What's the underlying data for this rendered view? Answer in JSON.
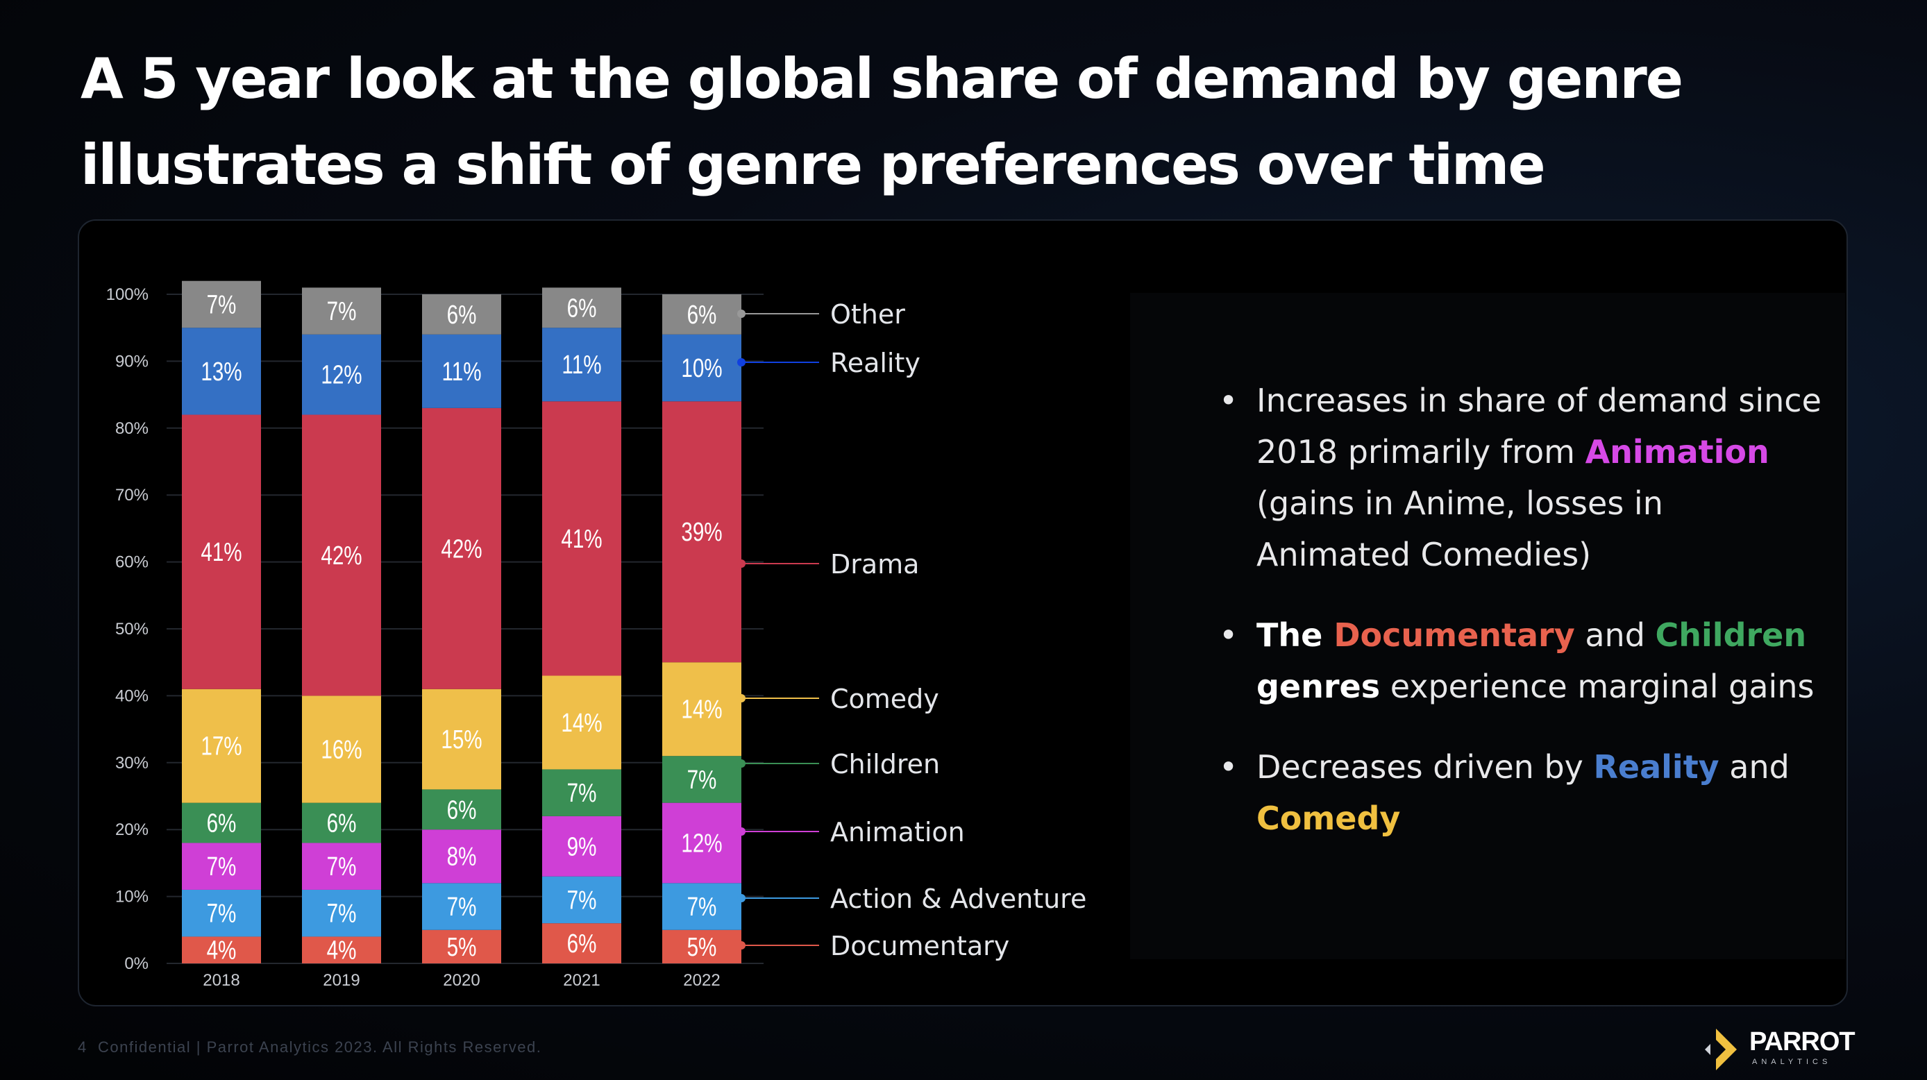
{
  "title": {
    "line1": "A 5 year look at the global share of demand by genre",
    "line2": "illustrates a shift of genre preferences over time"
  },
  "bullets": {
    "b1": {
      "part1": "Increases in share of demand since 2018 primarily from ",
      "highlight": "Animation",
      "part2": " (gains in Anime, losses in Animated Comedies)"
    },
    "b2": {
      "lead": "The ",
      "doc": "Documentary",
      "and": " and ",
      "children": "Children",
      "genres": " genres",
      "rest": " experience marginal gains"
    },
    "b3": {
      "part1": "Decreases driven by ",
      "reality": "Reality",
      "and": " and ",
      "comedy": "Comedy"
    }
  },
  "footer": {
    "page_number": "4",
    "text": "Confidential  |  Parrot Analytics 2023. All Rights Reserved."
  },
  "logo": {
    "word": "PARROT",
    "sub": "ANALYTICS"
  },
  "chart_data": {
    "type": "bar",
    "stacked": true,
    "categories": [
      "2018",
      "2019",
      "2020",
      "2021",
      "2022"
    ],
    "y_ticks": [
      "0%",
      "10%",
      "20%",
      "30%",
      "40%",
      "50%",
      "60%",
      "70%",
      "80%",
      "90%",
      "100%"
    ],
    "ylim": [
      0,
      100
    ],
    "series": [
      {
        "name": "Documentary",
        "color": "#e0584a",
        "values": [
          4,
          4,
          5,
          6,
          5
        ]
      },
      {
        "name": "Action & Adventure",
        "color": "#3d9ae0",
        "values": [
          7,
          7,
          7,
          7,
          7
        ]
      },
      {
        "name": "Animation",
        "color": "#cf3fd6",
        "values": [
          7,
          7,
          8,
          9,
          12
        ]
      },
      {
        "name": "Children",
        "color": "#3a8f55",
        "values": [
          6,
          6,
          6,
          7,
          7
        ]
      },
      {
        "name": "Comedy",
        "color": "#efbf4a",
        "values": [
          17,
          16,
          15,
          14,
          14
        ]
      },
      {
        "name": "Drama",
        "color": "#cb3a4f",
        "values": [
          41,
          42,
          42,
          41,
          39
        ]
      },
      {
        "name": "Reality",
        "color": "#3470c4",
        "values": [
          13,
          12,
          11,
          11,
          10
        ]
      },
      {
        "name": "Other",
        "color": "#888888",
        "values": [
          7,
          7,
          6,
          6,
          6
        ]
      }
    ],
    "legend_dot_colors": {
      "Documentary": "#e0584a",
      "Action & Adventure": "#3d9ae0",
      "Animation": "#cf3fd6",
      "Children": "#3a8f55",
      "Comedy": "#efbf4a",
      "Drama": "#cb3a4f",
      "Reality": "#1040e0",
      "Other": "#999999"
    }
  },
  "colors": {
    "animation": "#d649e6",
    "documentary": "#e8624e",
    "children": "#3fa860",
    "reality": "#4a7ecf",
    "comedy": "#f0c040"
  }
}
